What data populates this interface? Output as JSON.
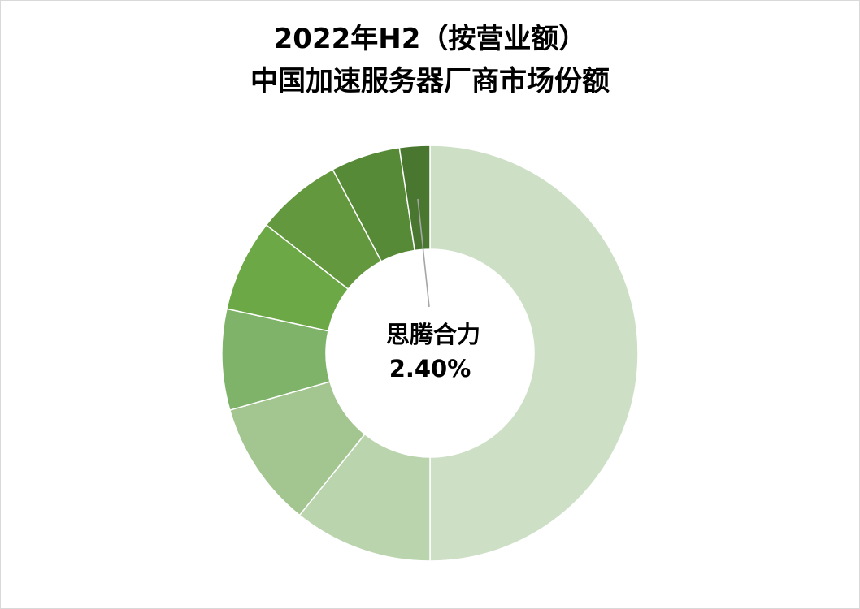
{
  "chart_data": {
    "type": "pie",
    "donut": true,
    "title": "2022年H2（按营业额）",
    "subtitle": "中国加速服务器厂商市场份额",
    "slices": [
      {
        "value": 51.0,
        "color": "#cde0c6"
      },
      {
        "value": 11.0,
        "color": "#bad4ae"
      },
      {
        "value": 10.0,
        "color": "#a3c58f"
      },
      {
        "value": 8.0,
        "color": "#7fb36a"
      },
      {
        "value": 7.3,
        "color": "#6ca846"
      },
      {
        "value": 6.8,
        "color": "#63983e"
      },
      {
        "value": 5.5,
        "color": "#568a36"
      },
      {
        "value": 2.4,
        "color": "#4a772f"
      }
    ],
    "callout": {
      "label": "思腾合力",
      "value_text": "2.40%"
    },
    "legend": "none"
  }
}
